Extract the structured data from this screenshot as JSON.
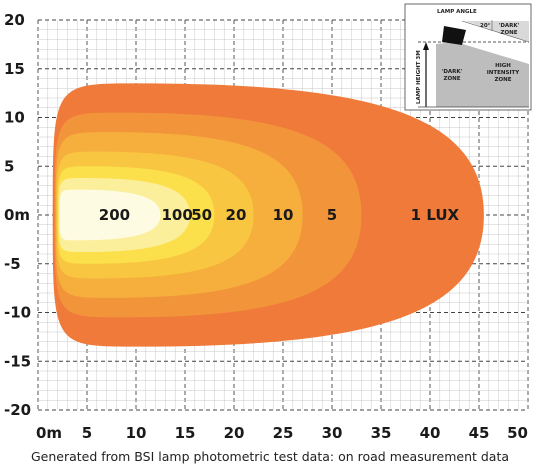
{
  "chart_data": {
    "type": "area",
    "xlabel": "",
    "ylabel": "",
    "xlim": [
      0,
      50
    ],
    "ylim": [
      -20,
      20
    ],
    "x_ticks": [
      "0m",
      "5",
      "10",
      "15",
      "20",
      "25",
      "30",
      "35",
      "40",
      "45",
      "50"
    ],
    "y_ticks": [
      "20",
      "15",
      "10",
      "5",
      "0m",
      "-5",
      "-10",
      "-15",
      "-20"
    ],
    "grid": true,
    "zones": [
      {
        "label": "1 LUX",
        "lux": 1,
        "x_start": 1.5,
        "x_end": 45.5,
        "half_width": 13.5,
        "color": "#ef7a3a",
        "label_x": 40.5
      },
      {
        "label": "5",
        "lux": 5,
        "x_start": 1.7,
        "x_end": 33.0,
        "half_width": 10.5,
        "color": "#f2953a",
        "label_x": 30.0
      },
      {
        "label": "10",
        "lux": 10,
        "x_start": 1.8,
        "x_end": 27.0,
        "half_width": 8.5,
        "color": "#f6af3c",
        "label_x": 25.0
      },
      {
        "label": "20",
        "lux": 20,
        "x_start": 1.9,
        "x_end": 22.0,
        "half_width": 6.5,
        "color": "#f8c640",
        "label_x": 20.2
      },
      {
        "label": "50",
        "lux": 50,
        "x_start": 2.0,
        "x_end": 18.0,
        "half_width": 5.0,
        "color": "#fbe04c",
        "label_x": 16.7
      },
      {
        "label": "100",
        "lux": 100,
        "x_start": 2.1,
        "x_end": 15.5,
        "half_width": 3.8,
        "color": "#fcef9c",
        "label_x": 14.2
      },
      {
        "label": "200",
        "lux": 200,
        "x_start": 2.2,
        "x_end": 12.5,
        "half_width": 2.6,
        "color": "#fdfbe2",
        "label_x": 7.8
      }
    ]
  },
  "inset": {
    "lamp_angle": "LAMP ANGLE",
    "angle": "20°",
    "dark_zone_upper": [
      "'DARK'",
      "ZONE"
    ],
    "dark_zone_lower": [
      "'DARK'",
      "ZONE"
    ],
    "high_intensity": [
      "HIGH",
      "INTENSITY",
      "ZONE"
    ],
    "lamp_height": "LAMP HEIGHT 3M"
  },
  "caption": "Generated from BSI lamp photometric test data: on road measurement data"
}
